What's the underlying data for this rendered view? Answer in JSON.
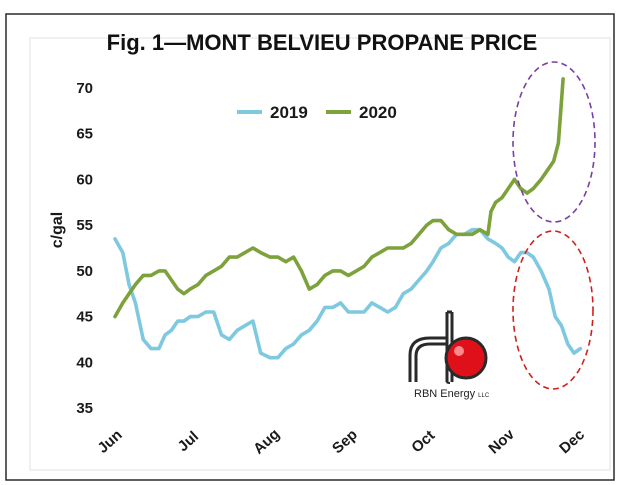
{
  "chart_data": {
    "type": "line",
    "title": "Fig. 1—MONT BELVIEU PROPANE PRICE",
    "xlabel": "",
    "ylabel": "c/gal",
    "ylim": [
      35,
      72
    ],
    "yticks": [
      35,
      40,
      45,
      50,
      55,
      60,
      65,
      70
    ],
    "xlim": [
      0,
      30
    ],
    "month_ticks": [
      "Jun",
      "Jul",
      "Aug",
      "Sep",
      "Oct",
      "Nov",
      "Dec"
    ],
    "legend_position": "top-left",
    "grid": false,
    "series": [
      {
        "name": "2019",
        "color": "#7ec8e0",
        "x": [
          0,
          0.5,
          0.9,
          1.3,
          1.8,
          2.3,
          2.8,
          3.2,
          3.6,
          4.0,
          4.4,
          4.8,
          5.3,
          5.8,
          6.3,
          6.8,
          7.3,
          7.8,
          8.3,
          8.8,
          9.3,
          9.9,
          10.4,
          10.9,
          11.4,
          11.9,
          12.4,
          12.9,
          13.4,
          13.9,
          14.4,
          14.9,
          15.4,
          15.9,
          16.4,
          16.9,
          17.4,
          17.9,
          18.4,
          18.9,
          19.4,
          19.9,
          20.3,
          20.8,
          21.3,
          21.8,
          22.3,
          22.8,
          23.3,
          23.8,
          24.3,
          24.7,
          25.1,
          25.5,
          25.9,
          26.3,
          26.7,
          27.2,
          27.7,
          28.1,
          28.5,
          28.9,
          29.3,
          29.7
        ],
        "values": [
          53.5,
          52,
          48.5,
          46.5,
          42.5,
          41.5,
          41.5,
          43,
          43.5,
          44.5,
          44.5,
          45,
          45,
          45.5,
          45.5,
          43,
          42.5,
          43.5,
          44,
          44.5,
          41,
          40.5,
          40.5,
          41.5,
          42,
          43,
          43.5,
          44.5,
          46,
          46,
          46.5,
          45.5,
          45.5,
          45.5,
          46.5,
          46,
          45.5,
          46,
          47.5,
          48,
          49,
          50,
          51,
          52.5,
          53,
          54,
          54,
          54.5,
          54.5,
          53.5,
          53,
          52.5,
          51.5,
          51,
          52,
          52,
          51.5,
          50,
          48,
          45,
          44,
          42,
          41,
          41.5
        ]
      },
      {
        "name": "2020",
        "color": "#7da23c",
        "x": [
          0,
          0.5,
          0.9,
          1.3,
          1.8,
          2.3,
          2.8,
          3.2,
          3.6,
          4.0,
          4.4,
          4.8,
          5.3,
          5.8,
          6.3,
          6.8,
          7.3,
          7.8,
          8.3,
          8.8,
          9.3,
          9.9,
          10.4,
          10.9,
          11.4,
          11.9,
          12.4,
          12.9,
          13.4,
          13.9,
          14.4,
          14.9,
          15.4,
          15.9,
          16.4,
          16.9,
          17.4,
          17.9,
          18.4,
          18.9,
          19.4,
          19.9,
          20.3,
          20.8,
          21.3,
          21.8,
          22.3,
          22.8,
          23.3,
          23.8,
          24.0,
          24.3,
          24.7,
          25.1,
          25.5,
          25.9,
          26.3,
          26.7,
          27.2,
          27.6,
          28.0,
          28.3,
          28.6
        ],
        "values": [
          45,
          46.5,
          47.5,
          48.5,
          49.5,
          49.5,
          50,
          50,
          49,
          48,
          47.5,
          48,
          48.5,
          49.5,
          50,
          50.5,
          51.5,
          51.5,
          52,
          52.5,
          52,
          51.5,
          51.5,
          51,
          51.5,
          50,
          48,
          48.5,
          49.5,
          50,
          50,
          49.5,
          50,
          50.5,
          51.5,
          52,
          52.5,
          52.5,
          52.5,
          53,
          54,
          55,
          55.5,
          55.5,
          54.5,
          54,
          54,
          54,
          54.5,
          54,
          56.5,
          57.5,
          58,
          59,
          60,
          59,
          58.5,
          59,
          60,
          61,
          62,
          64,
          71
        ]
      }
    ]
  },
  "logo": {
    "text": "RBN Energy",
    "suffix": "LLC"
  }
}
